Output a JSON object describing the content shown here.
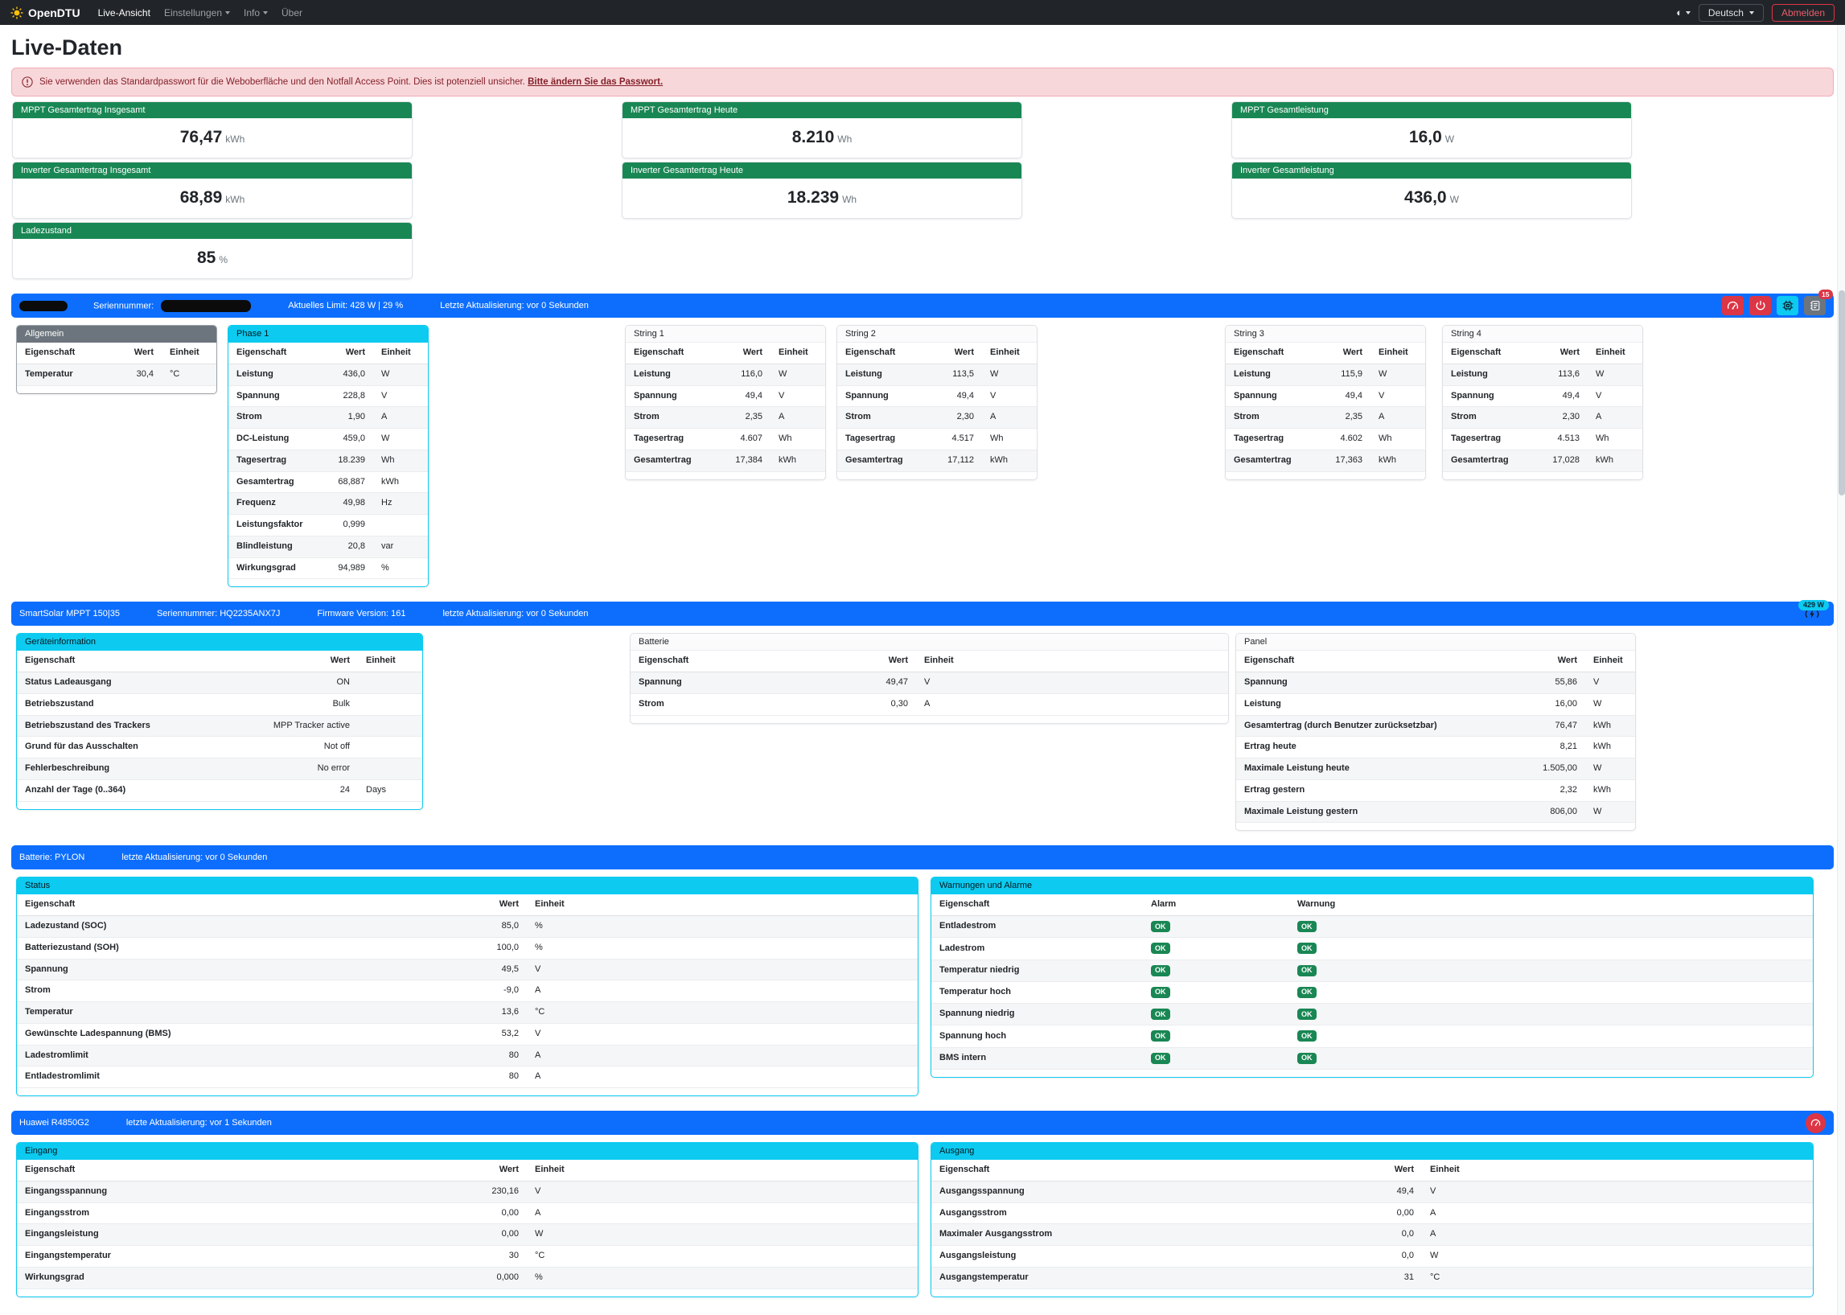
{
  "navbar": {
    "brand": "OpenDTU",
    "items": [
      {
        "label": "Live-Ansicht"
      },
      {
        "label": "Einstellungen"
      },
      {
        "label": "Info"
      },
      {
        "label": "Über"
      }
    ],
    "language": "Deutsch",
    "logout_label": "Abmelden"
  },
  "page": {
    "title": "Live-Daten",
    "alert_text": "Sie verwenden das Standardpasswort für die Weboberfläche und den Notfall Access Point. Dies ist potenziell unsicher.",
    "alert_link": "Bitte ändern Sie das Passwort."
  },
  "summary_cards": [
    {
      "title": "MPPT Gesamtertrag Insgesamt",
      "value": "76,47",
      "unit": "kWh"
    },
    {
      "title": "MPPT Gesamtertrag Heute",
      "value": "8.210",
      "unit": "Wh"
    },
    {
      "title": "MPPT Gesamtleistung",
      "value": "16,0",
      "unit": "W"
    },
    {
      "title": "Inverter Gesamtertrag Insgesamt",
      "value": "68,89",
      "unit": "kWh"
    },
    {
      "title": "Inverter Gesamtertrag Heute",
      "value": "18.239",
      "unit": "Wh"
    },
    {
      "title": "Inverter Gesamtleistung",
      "value": "436,0",
      "unit": "W"
    },
    {
      "title": "Ladezustand",
      "value": "85",
      "unit": "%"
    }
  ],
  "inverter": {
    "bar": {
      "serial_label": "Seriennummer:",
      "limit_text": "Aktuelles Limit: 428 W | 29 %",
      "updated_text": "Letzte Aktualisierung: vor 0 Sekunden",
      "event_count": "15"
    },
    "cards": [
      {
        "id": "allgemein",
        "title": "Allgemein",
        "header": "secondary",
        "columns": [
          "Eigenschaft",
          "Wert",
          "Einheit"
        ],
        "rows": [
          [
            "Temperatur",
            "30,4",
            "°C"
          ]
        ]
      },
      {
        "id": "phase1",
        "title": "Phase 1",
        "header": "info",
        "columns": [
          "Eigenschaft",
          "Wert",
          "Einheit"
        ],
        "rows": [
          [
            "Leistung",
            "436,0",
            "W"
          ],
          [
            "Spannung",
            "228,8",
            "V"
          ],
          [
            "Strom",
            "1,90",
            "A"
          ],
          [
            "DC-Leistung",
            "459,0",
            "W"
          ],
          [
            "Tagesertrag",
            "18.239",
            "Wh"
          ],
          [
            "Gesamtertrag",
            "68,887",
            "kWh"
          ],
          [
            "Frequenz",
            "49,98",
            "Hz"
          ],
          [
            "Leistungsfaktor",
            "0,999",
            ""
          ],
          [
            "Blindleistung",
            "20,8",
            "var"
          ],
          [
            "Wirkungsgrad",
            "94,989",
            "%"
          ]
        ]
      },
      {
        "id": "string1",
        "title": "String 1",
        "header": "plain",
        "columns": [
          "Eigenschaft",
          "Wert",
          "Einheit"
        ],
        "rows": [
          [
            "Leistung",
            "116,0",
            "W"
          ],
          [
            "Spannung",
            "49,4",
            "V"
          ],
          [
            "Strom",
            "2,35",
            "A"
          ],
          [
            "Tagesertrag",
            "4.607",
            "Wh"
          ],
          [
            "Gesamtertrag",
            "17,384",
            "kWh"
          ]
        ]
      },
      {
        "id": "string2",
        "title": "String 2",
        "header": "plain",
        "columns": [
          "Eigenschaft",
          "Wert",
          "Einheit"
        ],
        "rows": [
          [
            "Leistung",
            "113,5",
            "W"
          ],
          [
            "Spannung",
            "49,4",
            "V"
          ],
          [
            "Strom",
            "2,30",
            "A"
          ],
          [
            "Tagesertrag",
            "4.517",
            "Wh"
          ],
          [
            "Gesamtertrag",
            "17,112",
            "kWh"
          ]
        ]
      },
      {
        "id": "string3",
        "title": "String 3",
        "header": "plain",
        "columns": [
          "Eigenschaft",
          "Wert",
          "Einheit"
        ],
        "rows": [
          [
            "Leistung",
            "115,9",
            "W"
          ],
          [
            "Spannung",
            "49,4",
            "V"
          ],
          [
            "Strom",
            "2,35",
            "A"
          ],
          [
            "Tagesertrag",
            "4.602",
            "Wh"
          ],
          [
            "Gesamtertrag",
            "17,363",
            "kWh"
          ]
        ]
      },
      {
        "id": "string4",
        "title": "String 4",
        "header": "plain",
        "columns": [
          "Eigenschaft",
          "Wert",
          "Einheit"
        ],
        "rows": [
          [
            "Leistung",
            "113,6",
            "W"
          ],
          [
            "Spannung",
            "49,4",
            "V"
          ],
          [
            "Strom",
            "2,30",
            "A"
          ],
          [
            "Tagesertrag",
            "4.513",
            "Wh"
          ],
          [
            "Gesamtertrag",
            "17,028",
            "kWh"
          ]
        ]
      }
    ]
  },
  "mppt": {
    "bar": {
      "title": "SmartSolar MPPT 150|35",
      "serial_text": "Seriennummer: HQ2235ANX7J",
      "firmware_text": "Firmware Version: 161",
      "updated_text": "letzte Aktualisierung: vor 0 Sekunden",
      "power_badge": "429 W"
    },
    "cards": [
      {
        "id": "geraet",
        "title": "Geräteinformation",
        "header": "info",
        "columns": [
          "Eigenschaft",
          "Wert",
          "Einheit"
        ],
        "rows": [
          [
            "Status Ladeausgang",
            "ON",
            ""
          ],
          [
            "Betriebszustand",
            "Bulk",
            ""
          ],
          [
            "Betriebszustand des Trackers",
            "MPP Tracker active",
            ""
          ],
          [
            "Grund für das Ausschalten",
            "Not off",
            ""
          ],
          [
            "Fehlerbeschreibung",
            "No error",
            ""
          ],
          [
            "Anzahl der Tage (0..364)",
            "24",
            "Days"
          ]
        ]
      },
      {
        "id": "mppt-batterie",
        "title": "Batterie",
        "header": "plain",
        "columns": [
          "Eigenschaft",
          "Wert",
          "Einheit"
        ],
        "rows": [
          [
            "Spannung",
            "49,47",
            "V"
          ],
          [
            "Strom",
            "0,30",
            "A"
          ]
        ]
      },
      {
        "id": "panel",
        "title": "Panel",
        "header": "plain",
        "columns": [
          "Eigenschaft",
          "Wert",
          "Einheit"
        ],
        "rows": [
          [
            "Spannung",
            "55,86",
            "V"
          ],
          [
            "Leistung",
            "16,00",
            "W"
          ],
          [
            "Gesamtertrag (durch Benutzer zurücksetzbar)",
            "76,47",
            "kWh"
          ],
          [
            "Ertrag heute",
            "8,21",
            "kWh"
          ],
          [
            "Maximale Leistung heute",
            "1.505,00",
            "W"
          ],
          [
            "Ertrag gestern",
            "2,32",
            "kWh"
          ],
          [
            "Maximale Leistung gestern",
            "806,00",
            "W"
          ]
        ]
      }
    ]
  },
  "battery": {
    "bar": {
      "title": "Batterie: PYLON",
      "updated_text": "letzte Aktualisierung: vor 0 Sekunden"
    },
    "cards": [
      {
        "id": "status",
        "title": "Status",
        "header": "info",
        "columns": [
          "Eigenschaft",
          "Wert",
          "Einheit"
        ],
        "rows": [
          [
            "Ladezustand (SOC)",
            "85,0",
            "%"
          ],
          [
            "Batteriezustand (SOH)",
            "100,0",
            "%"
          ],
          [
            "Spannung",
            "49,5",
            "V"
          ],
          [
            "Strom",
            "-9,0",
            "A"
          ],
          [
            "Temperatur",
            "13,6",
            "°C"
          ],
          [
            "Gewünschte Ladespannung (BMS)",
            "53,2",
            "V"
          ],
          [
            "Ladestromlimit",
            "80",
            "A"
          ],
          [
            "Entladestromlimit",
            "80",
            "A"
          ]
        ]
      },
      {
        "id": "alarms",
        "title": "Warnungen und Alarme",
        "header": "info",
        "columns": [
          "Eigenschaft",
          "Alarm",
          "Warnung"
        ],
        "badge_rows": [
          [
            "Entladestrom",
            "OK",
            "OK"
          ],
          [
            "Ladestrom",
            "OK",
            "OK"
          ],
          [
            "Temperatur niedrig",
            "OK",
            "OK"
          ],
          [
            "Temperatur hoch",
            "OK",
            "OK"
          ],
          [
            "Spannung niedrig",
            "OK",
            "OK"
          ],
          [
            "Spannung hoch",
            "OK",
            "OK"
          ],
          [
            "BMS intern",
            "OK",
            "OK"
          ]
        ]
      }
    ]
  },
  "charger": {
    "bar": {
      "title": "Huawei R4850G2",
      "updated_text": "letzte Aktualisierung: vor 1 Sekunden"
    },
    "cards": [
      {
        "id": "eingang",
        "title": "Eingang",
        "header": "info",
        "columns": [
          "Eigenschaft",
          "Wert",
          "Einheit"
        ],
        "rows": [
          [
            "Eingangsspannung",
            "230,16",
            "V"
          ],
          [
            "Eingangsstrom",
            "0,00",
            "A"
          ],
          [
            "Eingangsleistung",
            "0,00",
            "W"
          ],
          [
            "Eingangstemperatur",
            "30",
            "°C"
          ],
          [
            "Wirkungsgrad",
            "0,000",
            "%"
          ]
        ]
      },
      {
        "id": "ausgang",
        "title": "Ausgang",
        "header": "info",
        "columns": [
          "Eigenschaft",
          "Wert",
          "Einheit"
        ],
        "rows": [
          [
            "Ausgangsspannung",
            "49,4",
            "V"
          ],
          [
            "Ausgangsstrom",
            "0,00",
            "A"
          ],
          [
            "Maximaler Ausgangsstrom",
            "0,0",
            "A"
          ],
          [
            "Ausgangsleistung",
            "0,0",
            "W"
          ],
          [
            "Ausgangstemperatur",
            "31",
            "°C"
          ]
        ]
      }
    ]
  }
}
